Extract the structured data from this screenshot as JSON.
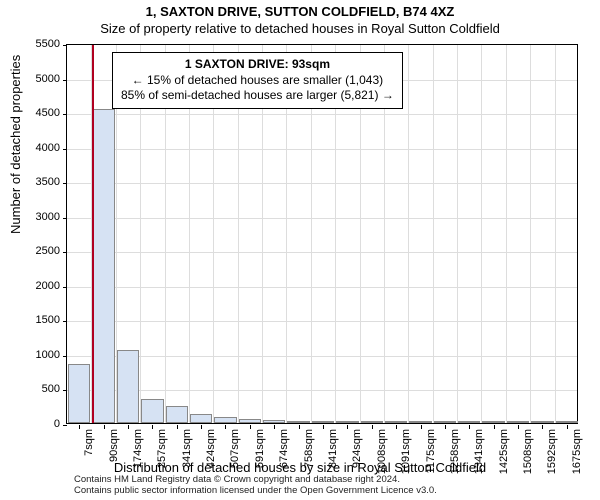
{
  "title_line1": "1, SAXTON DRIVE, SUTTON COLDFIELD, B74 4XZ",
  "title_line2": "Size of property relative to detached houses in Royal Sutton Coldfield",
  "ylabel": "Number of detached properties",
  "xlabel": "Distribution of detached houses by size in Royal Sutton Coldfield",
  "chart": {
    "type": "bar",
    "ylim": [
      0,
      5500
    ],
    "ytick_step": 500,
    "x_categories": [
      "7sqm",
      "90sqm",
      "174sqm",
      "257sqm",
      "341sqm",
      "424sqm",
      "507sqm",
      "591sqm",
      "674sqm",
      "758sqm",
      "841sqm",
      "924sqm",
      "1008sqm",
      "1091sqm",
      "1175sqm",
      "1258sqm",
      "1341sqm",
      "1425sqm",
      "1508sqm",
      "1592sqm",
      "1675sqm"
    ],
    "values": [
      850,
      4550,
      1050,
      350,
      240,
      130,
      90,
      60,
      45,
      30,
      25,
      20,
      15,
      12,
      10,
      8,
      6,
      5,
      4,
      3,
      2
    ],
    "bar_color": "#d6e2f3",
    "bar_border": "#888888",
    "background_color": "#ffffff",
    "grid_color": "#dddddd",
    "marker_color": "#b00020",
    "marker_bin_index": 1,
    "marker_value_sqm": 93
  },
  "info_box": {
    "line1": "1 SAXTON DRIVE: 93sqm",
    "line2": "← 15% of detached houses are smaller (1,043)",
    "line3": "85% of semi-detached houses are larger (5,821) →"
  },
  "footer": {
    "line1": "Contains HM Land Registry data © Crown copyright and database right 2024.",
    "line2": "Contains public sector information licensed under the Open Government Licence v3.0."
  }
}
